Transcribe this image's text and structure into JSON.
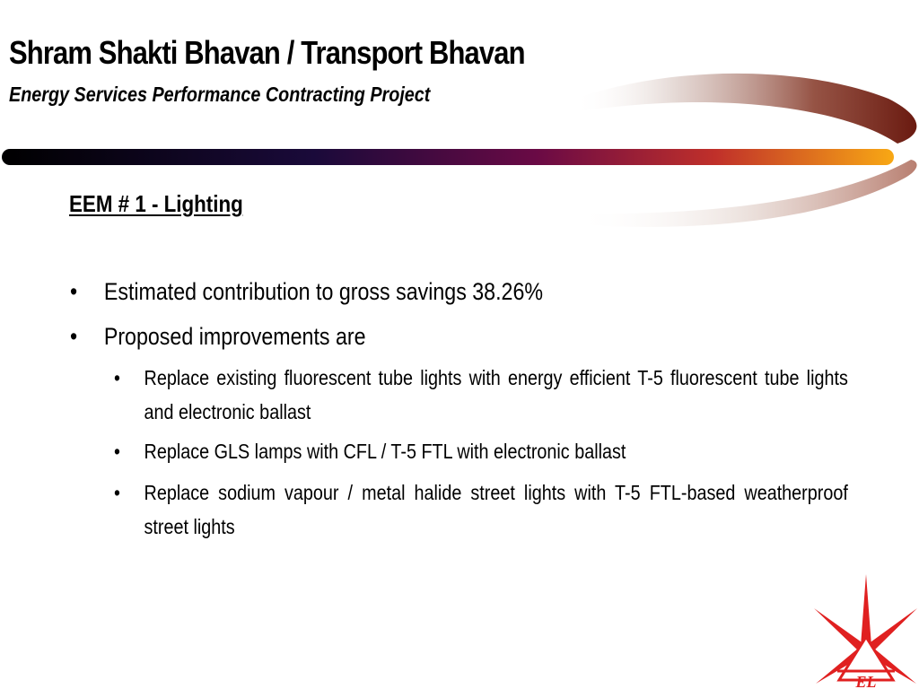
{
  "slide": {
    "title": "Shram Shakti Bhavan / Transport Bhavan",
    "subtitle": "Energy Services Performance Contracting Project",
    "section_heading": "EEM # 1 - Lighting",
    "bullet_symbol": "•",
    "bullets": [
      "Estimated contribution to gross savings 38.26%",
      "Proposed improvements are"
    ],
    "sub_bullets": [
      "Replace existing fluorescent tube lights with energy efficient T-5 fluorescent tube lights and electronic ballast",
      "Replace GLS lamps with CFL / T-5 FTL with electronic ballast",
      "Replace sodium vapour / metal halide street lights with T-5 FTL-based weatherproof street lights"
    ]
  },
  "logo": {
    "name": "star-logo",
    "text": "AEL",
    "color": "#e02020"
  },
  "colors": {
    "bar_start": "#000000",
    "bar_mid": "#7a0a4a",
    "bar_end": "#f59a10",
    "swoosh": "#9a4a3a"
  }
}
